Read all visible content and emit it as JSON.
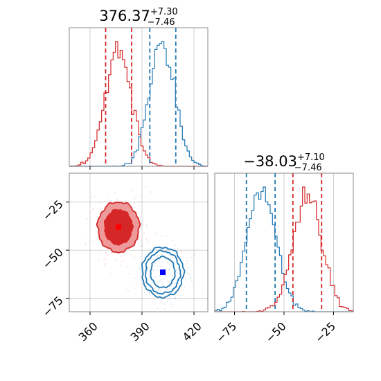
{
  "colors": {
    "red": "#d62728",
    "blue": "#1f77b4",
    "red_marker": "#ff0000",
    "blue_marker": "#0000ff",
    "red_fill_outer": "#ef9a9a",
    "red_fill_inner": "#d62728"
  },
  "chart_data": [
    {
      "type": "histogram",
      "panel": "top-left",
      "title_main": "376.37",
      "title_sup": "+7.30",
      "title_sub": "−7.46",
      "xlim": [
        348,
        428
      ],
      "xticks": [
        360,
        390,
        420
      ],
      "show_xtick_labels": false,
      "grid": true,
      "series": [
        {
          "name": "",
          "color": "red",
          "center": 376.37,
          "spread": 7.4,
          "quantiles": [
            369.0,
            384.0
          ]
        },
        {
          "name": "",
          "color": "blue",
          "center": 401.5,
          "spread": 7.3,
          "quantiles": [
            394.5,
            409.5
          ]
        }
      ]
    },
    {
      "type": "histogram",
      "panel": "bottom-right",
      "title_main": "−38.03",
      "title_sup": "+7.10",
      "title_sub": "−7.46",
      "xlim": [
        -85,
        -15
      ],
      "xticks": [
        -75,
        -50,
        -25
      ],
      "xtick_labels": [
        "−75",
        "−50",
        "−25"
      ],
      "grid": true,
      "series": [
        {
          "name": "",
          "color": "blue",
          "center": -61.5,
          "spread": 7.2,
          "quantiles": [
            -69.0,
            -54.5
          ]
        },
        {
          "name": "",
          "color": "red",
          "center": -38.03,
          "spread": 7.2,
          "quantiles": [
            -45.5,
            -31.0
          ]
        }
      ]
    },
    {
      "type": "contour",
      "panel": "bottom-left",
      "xlim": [
        348,
        428
      ],
      "ylim": [
        -82,
        -10
      ],
      "xticks": [
        360,
        390,
        420
      ],
      "xtick_labels": [
        "360",
        "390",
        "420"
      ],
      "yticks": [
        -25,
        -50,
        -75
      ],
      "ytick_labels": [
        "−25",
        "−50",
        "−75"
      ],
      "grid": true,
      "series": [
        {
          "name": "",
          "color": "red",
          "filled": true,
          "center": [
            376.4,
            -38.0
          ],
          "levels": [
            [
              8,
              9
            ],
            [
              12,
              13
            ]
          ],
          "marker": "red_marker"
        },
        {
          "name": "",
          "color": "blue",
          "filled": false,
          "center": [
            402.0,
            -61.5
          ],
          "levels": [
            [
              7,
              8
            ],
            [
              10,
              11
            ],
            [
              12,
              13
            ]
          ],
          "marker": "blue_marker"
        }
      ]
    }
  ]
}
